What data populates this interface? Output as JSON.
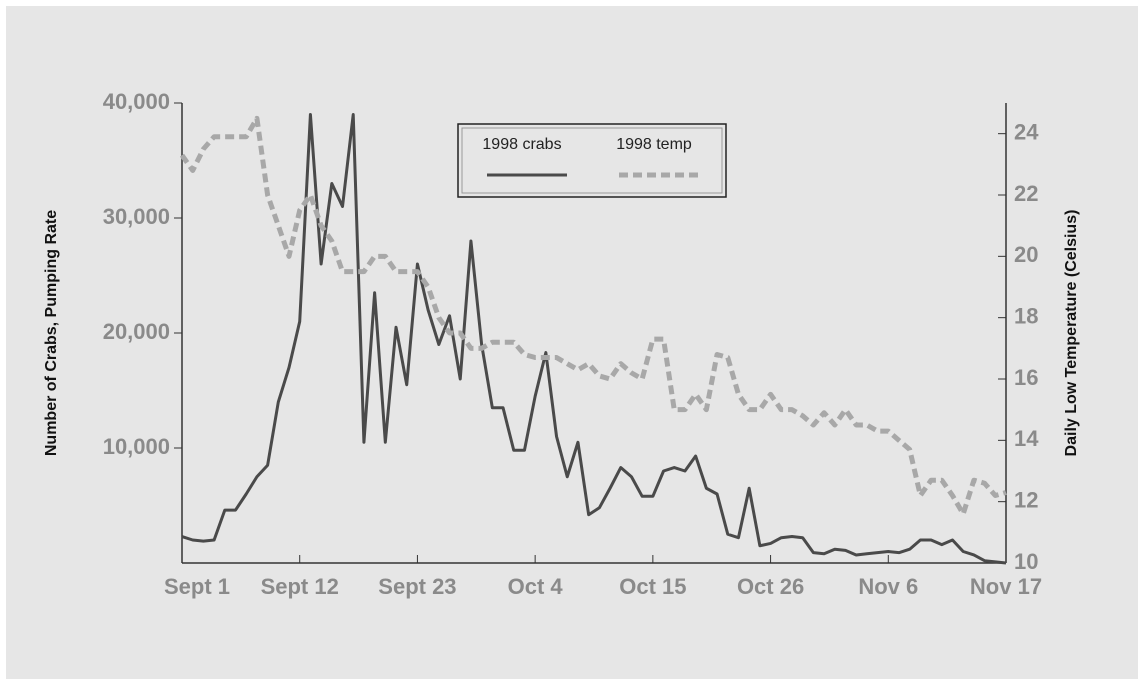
{
  "chart_data": {
    "type": "line",
    "y_label": "Number of Crabs, Pumping Rate",
    "y2_label": "Daily Low Temperature (Celsius)",
    "x": [
      0,
      1,
      2,
      3,
      4,
      5,
      6,
      7,
      8,
      9,
      10,
      11,
      12,
      13,
      14,
      15,
      16,
      17,
      18,
      19,
      20,
      21,
      22,
      23,
      24,
      25,
      26,
      27,
      28,
      29,
      30,
      31,
      32,
      33,
      34,
      35,
      36,
      37,
      38,
      39,
      40,
      41,
      42,
      43,
      44,
      45,
      46,
      47,
      48,
      49,
      50,
      51,
      52,
      53,
      54,
      55,
      56,
      57,
      58,
      59,
      60,
      61,
      62,
      63,
      64,
      65,
      66,
      67,
      68,
      69,
      70,
      71,
      72,
      73,
      74,
      75,
      76,
      77
    ],
    "xlim": [
      0,
      77
    ],
    "xticks": [
      {
        "value": 0,
        "label": "Sept 1"
      },
      {
        "value": 11,
        "label": "Sept 12"
      },
      {
        "value": 22,
        "label": "Sept 23"
      },
      {
        "value": 33,
        "label": "Oct 4"
      },
      {
        "value": 44,
        "label": "Oct 15"
      },
      {
        "value": 55,
        "label": "Oct 26"
      },
      {
        "value": 66,
        "label": "Nov 6"
      },
      {
        "value": 77,
        "label": "Nov 17"
      }
    ],
    "ylim": [
      0,
      40000
    ],
    "yticks": [
      {
        "value": 10000,
        "label": "10,000"
      },
      {
        "value": 20000,
        "label": "20,000"
      },
      {
        "value": 30000,
        "label": "30,000"
      },
      {
        "value": 40000,
        "label": "40,000"
      }
    ],
    "y2lim": [
      10,
      25
    ],
    "y2ticks": [
      10,
      12,
      14,
      16,
      18,
      20,
      22,
      24
    ],
    "series": [
      {
        "name": "1998 crabs",
        "color": "#4a4a4a",
        "dashed": false,
        "values": [
          2300,
          2000,
          1900,
          2000,
          4600,
          4600,
          6000,
          7500,
          8500,
          14000,
          17000,
          21000,
          39000,
          26000,
          33000,
          31000,
          39000,
          10500,
          23500,
          10500,
          20500,
          15500,
          26000,
          22000,
          19000,
          21500,
          16000,
          28000,
          19000,
          13500,
          13500,
          9800,
          9800,
          14500,
          18300,
          11000,
          7500,
          10500,
          4200,
          4800,
          6500,
          8300,
          7500,
          5800,
          5800,
          8000,
          8300,
          8000,
          9300,
          6500,
          6000,
          2500,
          2200,
          6500,
          1500,
          1700,
          2200,
          2300,
          2200,
          900,
          800,
          1200,
          1100,
          700,
          800,
          900,
          1000,
          900,
          1200,
          2000,
          2000,
          1600,
          2000,
          1000,
          700,
          200,
          100,
          0
        ]
      },
      {
        "name": "1998 temp",
        "color": "#a8a8a8",
        "dashed": true,
        "axis": "y2",
        "values": [
          23.3,
          22.8,
          23.5,
          23.9,
          23.9,
          23.9,
          23.9,
          24.5,
          22,
          21,
          20,
          21.5,
          22,
          21,
          20.5,
          19.5,
          19.5,
          19.5,
          20,
          20,
          19.5,
          19.5,
          19.5,
          19,
          18,
          17.5,
          17.5,
          17,
          17,
          17.2,
          17.2,
          17.2,
          16.8,
          16.7,
          16.7,
          16.7,
          16.5,
          16.3,
          16.5,
          16.1,
          16,
          16.5,
          16.2,
          16,
          17.3,
          17.3,
          15,
          15,
          15.5,
          15,
          16.8,
          16.7,
          15.5,
          15,
          15,
          15.5,
          15,
          15,
          14.8,
          14.5,
          14.9,
          14.5,
          15,
          14.5,
          14.5,
          14.3,
          14.3,
          14,
          13.7,
          12.2,
          12.7,
          12.7,
          12.2,
          11.6,
          12.7,
          12.6,
          12.2,
          12.3
        ]
      }
    ]
  }
}
